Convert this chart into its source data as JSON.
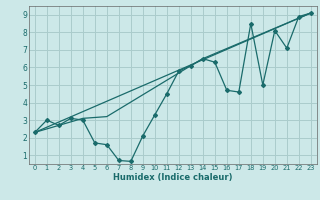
{
  "title": "",
  "xlabel": "Humidex (Indice chaleur)",
  "xlim": [
    -0.5,
    23.5
  ],
  "ylim": [
    0.5,
    9.5
  ],
  "xticks": [
    0,
    1,
    2,
    3,
    4,
    5,
    6,
    7,
    8,
    9,
    10,
    11,
    12,
    13,
    14,
    15,
    16,
    17,
    18,
    19,
    20,
    21,
    22,
    23
  ],
  "yticks": [
    1,
    2,
    3,
    4,
    5,
    6,
    7,
    8,
    9
  ],
  "bg_color": "#cce8e8",
  "line_color": "#1a6b6b",
  "grid_color": "#aacccc",
  "line1_x": [
    0,
    1,
    2,
    3,
    4,
    5,
    6,
    7,
    8,
    9,
    10,
    11,
    12,
    13,
    14,
    15,
    16,
    17,
    18,
    19,
    20,
    21,
    22,
    23
  ],
  "line1_y": [
    2.3,
    3.0,
    2.7,
    3.1,
    3.0,
    1.7,
    1.6,
    0.7,
    0.65,
    2.1,
    3.3,
    4.5,
    5.8,
    6.1,
    6.5,
    6.3,
    4.7,
    4.6,
    8.5,
    5.0,
    8.1,
    7.1,
    8.9,
    9.1
  ],
  "line2_x": [
    0,
    23
  ],
  "line2_y": [
    2.3,
    9.1
  ],
  "line3_x": [
    0,
    4,
    6,
    13,
    14,
    23
  ],
  "line3_y": [
    2.3,
    3.1,
    3.2,
    6.1,
    6.5,
    9.1
  ]
}
